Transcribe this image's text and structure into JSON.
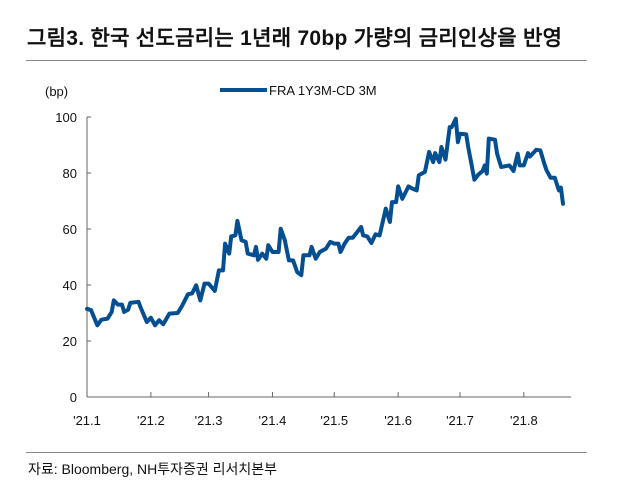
{
  "title": "그림3. 한국 선도금리는 1년래 70bp 가량의 금리인상을 반영",
  "source": "자료: Bloomberg, NH투자증권 리서치본부",
  "chart_data": {
    "type": "line",
    "title": "그림3. 한국 선도금리는 1년래 70bp 가량의 금리인상을 반영",
    "ylabel": "(bp)",
    "xlabel": "",
    "ylim": [
      0,
      100
    ],
    "yticks": [
      0,
      20,
      40,
      60,
      80,
      100
    ],
    "xlim": [
      "2021-01-01",
      "2021-08-20"
    ],
    "xticks": [
      {
        "date": "2021-01-01",
        "label": "'21.1"
      },
      {
        "date": "2021-02-01",
        "label": "'21.2"
      },
      {
        "date": "2021-03-01",
        "label": "'21.3"
      },
      {
        "date": "2021-04-01",
        "label": "'21.4"
      },
      {
        "date": "2021-05-01",
        "label": "'21.5"
      },
      {
        "date": "2021-06-01",
        "label": "'21.6"
      },
      {
        "date": "2021-07-01",
        "label": "'21.7"
      },
      {
        "date": "2021-08-01",
        "label": "'21.8"
      }
    ],
    "grid": false,
    "legend": "top-center",
    "series": [
      {
        "name": "FRA 1Y3M-CD 3M",
        "color": "#044E92",
        "points": [
          [
            "2021-01-01",
            31.5
          ],
          [
            "2021-01-03",
            31
          ],
          [
            "2021-01-06",
            25.6
          ],
          [
            "2021-01-08",
            27.6
          ],
          [
            "2021-01-11",
            28
          ],
          [
            "2021-01-13",
            30.4
          ],
          [
            "2021-01-14",
            34.5
          ],
          [
            "2021-01-16",
            33
          ],
          [
            "2021-01-18",
            33
          ],
          [
            "2021-01-19",
            30.4
          ],
          [
            "2021-01-21",
            31.2
          ],
          [
            "2021-01-22",
            33.6
          ],
          [
            "2021-01-26",
            34
          ],
          [
            "2021-01-27",
            32
          ],
          [
            "2021-01-30",
            26.8
          ],
          [
            "2021-02-01",
            28.3
          ],
          [
            "2021-02-03",
            25.6
          ],
          [
            "2021-02-05",
            27.4
          ],
          [
            "2021-02-07",
            26
          ],
          [
            "2021-02-10",
            29.8
          ],
          [
            "2021-02-14",
            30
          ],
          [
            "2021-02-16",
            32.4
          ],
          [
            "2021-02-19",
            36.7
          ],
          [
            "2021-02-21",
            37
          ],
          [
            "2021-02-23",
            39.9
          ],
          [
            "2021-02-25",
            34.5
          ],
          [
            "2021-02-27",
            40.5
          ],
          [
            "2021-03-01",
            40.5
          ],
          [
            "2021-03-04",
            37.9
          ],
          [
            "2021-03-06",
            45.2
          ],
          [
            "2021-03-08",
            45.2
          ],
          [
            "2021-03-09",
            54.8
          ],
          [
            "2021-03-11",
            51.2
          ],
          [
            "2021-03-12",
            57.4
          ],
          [
            "2021-03-14",
            57.7
          ],
          [
            "2021-03-15",
            62.9
          ],
          [
            "2021-03-17",
            56
          ],
          [
            "2021-03-19",
            55.4
          ],
          [
            "2021-03-20",
            51.2
          ],
          [
            "2021-03-23",
            50.6
          ],
          [
            "2021-03-24",
            53.6
          ],
          [
            "2021-03-25",
            49
          ],
          [
            "2021-03-27",
            51.2
          ],
          [
            "2021-03-29",
            49.4
          ],
          [
            "2021-03-30",
            54.2
          ],
          [
            "2021-04-01",
            51.8
          ],
          [
            "2021-04-04",
            51.8
          ],
          [
            "2021-04-05",
            60.1
          ],
          [
            "2021-04-07",
            56
          ],
          [
            "2021-04-09",
            48.8
          ],
          [
            "2021-04-11",
            48.8
          ],
          [
            "2021-04-13",
            44.6
          ],
          [
            "2021-04-15",
            43.5
          ],
          [
            "2021-04-16",
            50.6
          ],
          [
            "2021-04-19",
            50.6
          ],
          [
            "2021-04-20",
            53.6
          ],
          [
            "2021-04-22",
            49.4
          ],
          [
            "2021-04-24",
            51.8
          ],
          [
            "2021-04-27",
            53
          ],
          [
            "2021-04-29",
            55.4
          ],
          [
            "2021-05-01",
            54.8
          ],
          [
            "2021-05-03",
            54.8
          ],
          [
            "2021-05-04",
            51.8
          ],
          [
            "2021-05-06",
            54.8
          ],
          [
            "2021-05-08",
            56.9
          ],
          [
            "2021-05-10",
            56.9
          ],
          [
            "2021-05-14",
            60.7
          ],
          [
            "2021-05-15",
            57.7
          ],
          [
            "2021-05-17",
            57.4
          ],
          [
            "2021-05-19",
            55
          ],
          [
            "2021-05-21",
            58.1
          ],
          [
            "2021-05-23",
            57.7
          ],
          [
            "2021-05-26",
            67.3
          ],
          [
            "2021-05-28",
            62.5
          ],
          [
            "2021-05-29",
            69.6
          ],
          [
            "2021-05-31",
            69.6
          ],
          [
            "2021-06-01",
            75.2
          ],
          [
            "2021-06-03",
            70.8
          ],
          [
            "2021-06-06",
            75.2
          ],
          [
            "2021-06-08",
            74.4
          ],
          [
            "2021-06-10",
            73.8
          ],
          [
            "2021-06-11",
            79.2
          ],
          [
            "2021-06-13",
            80
          ],
          [
            "2021-06-14",
            80.4
          ],
          [
            "2021-06-16",
            87.5
          ],
          [
            "2021-06-18",
            83.9
          ],
          [
            "2021-06-19",
            87.1
          ],
          [
            "2021-06-21",
            83.9
          ],
          [
            "2021-06-22",
            89.3
          ],
          [
            "2021-06-24",
            84.8
          ],
          [
            "2021-06-26",
            96.4
          ],
          [
            "2021-06-27",
            96.4
          ],
          [
            "2021-06-29",
            99.4
          ],
          [
            "2021-06-30",
            91
          ],
          [
            "2021-07-01",
            94
          ],
          [
            "2021-07-04",
            93.8
          ],
          [
            "2021-07-05",
            89.3
          ],
          [
            "2021-07-08",
            77.6
          ],
          [
            "2021-07-10",
            79.5
          ],
          [
            "2021-07-12",
            80.7
          ],
          [
            "2021-07-13",
            82.7
          ],
          [
            "2021-07-14",
            79.8
          ],
          [
            "2021-07-15",
            92.3
          ],
          [
            "2021-07-18",
            91.9
          ],
          [
            "2021-07-19",
            86.9
          ],
          [
            "2021-07-21",
            82.1
          ],
          [
            "2021-07-25",
            82.7
          ],
          [
            "2021-07-27",
            80.7
          ],
          [
            "2021-07-29",
            86.9
          ],
          [
            "2021-07-30",
            82.7
          ],
          [
            "2021-08-01",
            82.7
          ],
          [
            "2021-08-03",
            87.1
          ],
          [
            "2021-08-04",
            85.9
          ],
          [
            "2021-08-07",
            88.3
          ],
          [
            "2021-08-09",
            88.1
          ],
          [
            "2021-08-11",
            83.1
          ],
          [
            "2021-08-12",
            81
          ],
          [
            "2021-08-14",
            78.3
          ],
          [
            "2021-08-16",
            78.3
          ],
          [
            "2021-08-18",
            73.8
          ],
          [
            "2021-08-19",
            74.8
          ],
          [
            "2021-08-20",
            69
          ]
        ]
      }
    ]
  }
}
